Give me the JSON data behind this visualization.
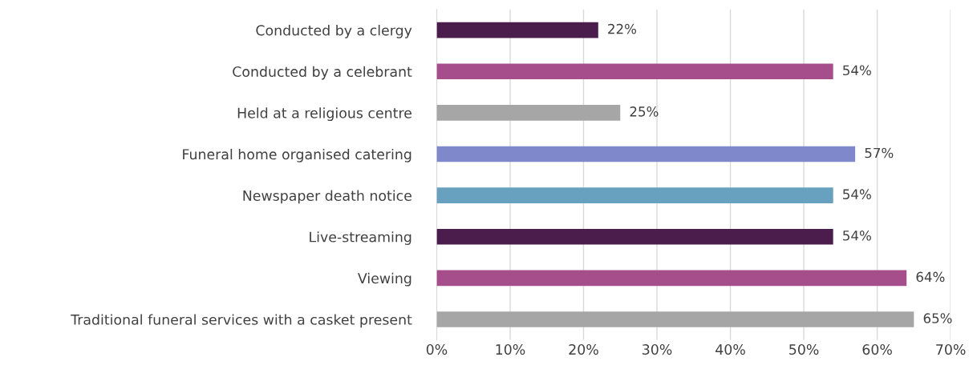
{
  "chart_data": {
    "type": "bar",
    "orientation": "horizontal",
    "categories": [
      "Conducted by a clergy",
      "Conducted by a celebrant",
      "Held at a religious centre",
      "Funeral home organised catering",
      "Newspaper death notice",
      "Live-streaming",
      "Viewing",
      "Traditional funeral services with a casket present"
    ],
    "values": [
      22,
      54,
      25,
      57,
      54,
      54,
      64,
      65
    ],
    "colors": [
      "#4a1d4d",
      "#a64d8c",
      "#a6a6a6",
      "#8088cc",
      "#68a0bf",
      "#4a1d4d",
      "#a64d8c",
      "#a6a6a6"
    ],
    "value_labels": [
      "22%",
      "54%",
      "25%",
      "57%",
      "54%",
      "54%",
      "64%",
      "65%"
    ],
    "xlim": [
      0,
      70
    ],
    "xticks": [
      {
        "value": 0,
        "label": "0%"
      },
      {
        "value": 10,
        "label": "10%"
      },
      {
        "value": 20,
        "label": "20%"
      },
      {
        "value": 30,
        "label": "30%"
      },
      {
        "value": 40,
        "label": "40%"
      },
      {
        "value": 50,
        "label": "50%"
      },
      {
        "value": 60,
        "label": "60%"
      },
      {
        "value": 70,
        "label": "70%"
      }
    ],
    "grid": "x"
  }
}
